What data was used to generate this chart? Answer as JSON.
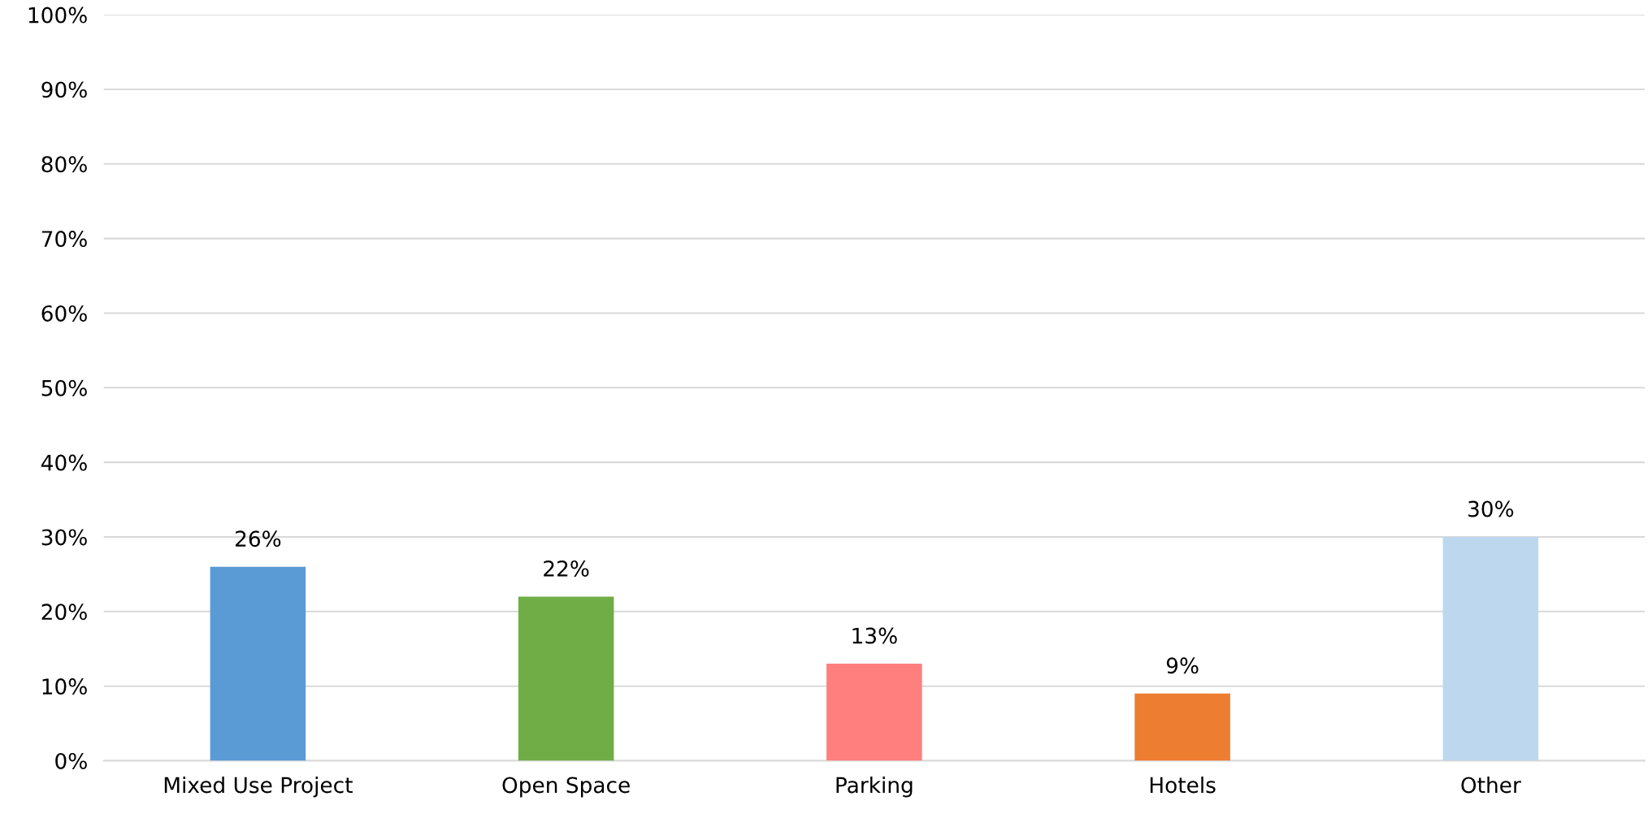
{
  "chart_data": {
    "type": "bar",
    "categories": [
      "Mixed Use Project",
      "Open Space",
      "Parking",
      "Hotels",
      "Other"
    ],
    "values": [
      26,
      22,
      13,
      9,
      30
    ],
    "colors": [
      "#5b9bd5",
      "#70ad47",
      "#ff7f7f",
      "#ed7d31",
      "#bdd7ee"
    ],
    "value_labels": [
      "26%",
      "22%",
      "13%",
      "9%",
      "30%"
    ],
    "ylim": [
      0,
      100
    ],
    "yticks": [
      {
        "value": 0,
        "label": "0%"
      },
      {
        "value": 10,
        "label": "10%"
      },
      {
        "value": 20,
        "label": "20%"
      },
      {
        "value": 30,
        "label": "30%"
      },
      {
        "value": 40,
        "label": "40%"
      },
      {
        "value": 50,
        "label": "50%"
      },
      {
        "value": 60,
        "label": "60%"
      },
      {
        "value": 70,
        "label": "70%"
      },
      {
        "value": 80,
        "label": "80%"
      },
      {
        "value": 90,
        "label": "90%"
      },
      {
        "value": 100,
        "label": "100%"
      }
    ],
    "grid": "y",
    "legend": false
  }
}
